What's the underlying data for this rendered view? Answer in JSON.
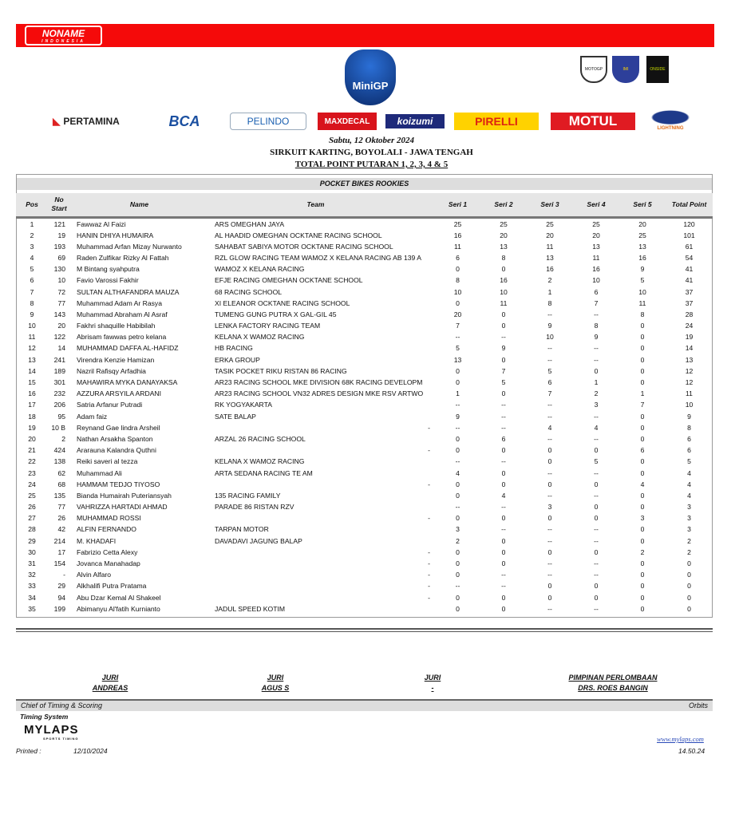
{
  "brand": {
    "logo_text": "NONAME",
    "logo_sub": "INDONESIA",
    "accent": "#f50a0a"
  },
  "event_logo": {
    "text": "MiniGP",
    "sub": "FIM"
  },
  "badges": [
    "MOTOGP",
    "IMI",
    "ONSIDE"
  ],
  "sponsors": [
    "PERTAMINA",
    "BCA",
    "PELINDO",
    "MAXDECAL",
    "koizumi",
    "PIRELLI",
    "MOTUL",
    "LIGHTNING"
  ],
  "header": {
    "date": "Sabtu, 12 Oktober 2024",
    "venue": "SIRKUIT KARTING, BOYOLALI - JAWA TENGAH",
    "title": "TOTAL POINT PUTARAN 1, 2, 3, 4 & 5"
  },
  "category": "POCKET BIKES ROOKIES",
  "columns": {
    "pos": "Pos",
    "no": "No Start",
    "name": "Name",
    "team": "Team",
    "s1": "Seri 1",
    "s2": "Seri 2",
    "s3": "Seri 3",
    "s4": "Seri 4",
    "s5": "Seri 5",
    "total": "Total Point"
  },
  "rows": [
    [
      "1",
      "121",
      "Fawwaz Al Faizi",
      "ARS OMEGHAN JAYA",
      "",
      "25",
      "25",
      "25",
      "25",
      "20",
      "120"
    ],
    [
      "2",
      "19",
      "HANIN DHIYA HUMAIRA",
      "AL HAADID OMEGHAN OCKTANE RACING SCHOOL",
      "",
      "16",
      "20",
      "20",
      "20",
      "25",
      "101"
    ],
    [
      "3",
      "193",
      "Muhammad Arfan Mizay Nurwanto",
      "SAHABAT SABIYA MOTOR OCKTANE RACING SCHOOL",
      "",
      "11",
      "13",
      "11",
      "13",
      "13",
      "61"
    ],
    [
      "4",
      "69",
      "Raden Zulfikar Rizky Al Fattah",
      "RZL GLOW RACING TEAM WAMOZ X KELANA RACING AB 139 A",
      "",
      "6",
      "8",
      "13",
      "11",
      "16",
      "54"
    ],
    [
      "5",
      "130",
      "M Bintang syahputra",
      "WAMOZ X KELANA RACING",
      "",
      "0",
      "0",
      "16",
      "16",
      "9",
      "41"
    ],
    [
      "6",
      "10",
      "Favio Varossi Fakhir",
      "EFJE RACING OMEGHAN OCKTANE SCHOOL",
      "",
      "8",
      "16",
      "2",
      "10",
      "5",
      "41"
    ],
    [
      "7",
      "72",
      "SULTAN ALTHAFANDRA MAUZA",
      "68 RACING SCHOOL",
      "",
      "10",
      "10",
      "1",
      "6",
      "10",
      "37"
    ],
    [
      "8",
      "77",
      "Muhammad Adam Ar Rasya",
      "XI ELEANOR OCKTANE RACING SCHOOL",
      "",
      "0",
      "11",
      "8",
      "7",
      "11",
      "37"
    ],
    [
      "9",
      "143",
      "Muhammad Abraham Al Asraf",
      "TUMENG GUNG PUTRA X GAL-GIL 45",
      "",
      "20",
      "0",
      "--",
      "--",
      "8",
      "28"
    ],
    [
      "10",
      "20",
      "Fakhri shaquille Habibilah",
      "LENKA FACTORY RACING TEAM",
      "",
      "7",
      "0",
      "9",
      "8",
      "0",
      "24"
    ],
    [
      "11",
      "122",
      "Abrisam fawwas petro kelana",
      "KELANA X WAMOZ RACING",
      "",
      "--",
      "--",
      "10",
      "9",
      "0",
      "19"
    ],
    [
      "12",
      "14",
      "MUHAMMAD DAFFA AL-HAFIDZ",
      "HB RACING",
      "",
      "5",
      "9",
      "--",
      "--",
      "0",
      "14"
    ],
    [
      "13",
      "241",
      "Virendra Kenzie Hamizan",
      "ERKA GROUP",
      "",
      "13",
      "0",
      "--",
      "--",
      "0",
      "13"
    ],
    [
      "14",
      "189",
      "Nazril Rafisqy Arfadhia",
      "TASIK POCKET RIKU RISTAN 86 RACING",
      "",
      "0",
      "7",
      "5",
      "0",
      "0",
      "12"
    ],
    [
      "15",
      "301",
      "MAHAWIRA MYKA DANAYAKSA",
      "AR23 RACING SCHOOL MKE DIVISION 68K RACING DEVELOPME",
      "",
      "0",
      "5",
      "6",
      "1",
      "0",
      "12"
    ],
    [
      "16",
      "232",
      "AZZURA ARSYILA ARDANI",
      "AR23 RACING SCHOOL VN32 ADRES DESIGN MKE RSV ARTWOF",
      "",
      "1",
      "0",
      "7",
      "2",
      "1",
      "11"
    ],
    [
      "17",
      "206",
      "Satria Arfanur Putradi",
      "RK YOGYAKARTA",
      "",
      "--",
      "--",
      "--",
      "3",
      "7",
      "10"
    ],
    [
      "18",
      "95",
      "Adam faiz",
      "SATE BALAP",
      "",
      "9",
      "--",
      "--",
      "--",
      "0",
      "9"
    ],
    [
      "19",
      "10 B",
      "Reynand Gae lindra Arsheil",
      "",
      "-",
      "--",
      "--",
      "4",
      "4",
      "0",
      "8"
    ],
    [
      "20",
      "2",
      "Nathan Arsakha Spanton",
      "ARZAL 26 RACING SCHOOL",
      "",
      "0",
      "6",
      "--",
      "--",
      "0",
      "6"
    ],
    [
      "21",
      "424",
      "Ararauna Kalandra Quthni",
      "",
      "-",
      "0",
      "0",
      "0",
      "0",
      "6",
      "6"
    ],
    [
      "22",
      "138",
      "Reiki saveri al tezza",
      "KELANA X WAMOZ RACING",
      "",
      "--",
      "--",
      "0",
      "5",
      "0",
      "5"
    ],
    [
      "23",
      "62",
      "Muhammad Ali",
      "ARTA SEDANA RACING TE AM",
      "",
      "4",
      "0",
      "--",
      "--",
      "0",
      "4"
    ],
    [
      "24",
      "68",
      "HAMMAM TEDJO TIYOSO",
      "",
      "-",
      "0",
      "0",
      "0",
      "0",
      "4",
      "4"
    ],
    [
      "25",
      "135",
      "Bianda Humairah Puteriansyah",
      "135 RACING FAMILY",
      "",
      "0",
      "4",
      "--",
      "--",
      "0",
      "4"
    ],
    [
      "26",
      "77",
      "VAHRIZZA HARTADI AHMAD",
      "PARADE 86 RISTAN RZV",
      "",
      "--",
      "--",
      "3",
      "0",
      "0",
      "3"
    ],
    [
      "27",
      "26",
      "MUHAMMAD ROSSI",
      "",
      "-",
      "0",
      "0",
      "0",
      "0",
      "3",
      "3"
    ],
    [
      "28",
      "42",
      "ALFIN FERNANDO",
      "TARPAN MOTOR",
      "",
      "3",
      "--",
      "--",
      "--",
      "0",
      "3"
    ],
    [
      "29",
      "214",
      "M. KHADAFI",
      "DAVADAVI JAGUNG BALAP",
      "",
      "2",
      "0",
      "--",
      "--",
      "0",
      "2"
    ],
    [
      "30",
      "17",
      "Fabrizio Cetta Alexy",
      "",
      "-",
      "0",
      "0",
      "0",
      "0",
      "2",
      "2"
    ],
    [
      "31",
      "154",
      "Jovanca Manahadap",
      "",
      "-",
      "0",
      "0",
      "--",
      "--",
      "0",
      "0"
    ],
    [
      "32",
      "-",
      "Alvin Alfaro",
      "",
      "-",
      "0",
      "--",
      "--",
      "--",
      "0",
      "0"
    ],
    [
      "33",
      "29",
      "Alkhalifi Putra Pratama",
      "",
      "-",
      "--",
      "--",
      "0",
      "0",
      "0",
      "0"
    ],
    [
      "34",
      "94",
      "Abu Dzar Kemal Al Shakeel",
      "",
      "-",
      "0",
      "0",
      "0",
      "0",
      "0",
      "0"
    ],
    [
      "35",
      "199",
      "Abimanyu Al'fatih Kurnianto",
      "JADUL SPEED KOTIM",
      "",
      "0",
      "0",
      "--",
      "--",
      "0",
      "0"
    ]
  ],
  "signatures": [
    {
      "role": "JURI",
      "name": "ANDREAS"
    },
    {
      "role": "JURI",
      "name": "AGUS S"
    },
    {
      "role": "JURI",
      "name": "-"
    },
    {
      "role": "PIMPINAN PERLOMBAAN",
      "name": "DRS. ROES BANGIN"
    }
  ],
  "footer": {
    "chief": "Chief of Timing & Scoring",
    "orbits": "Orbits",
    "timing_system": "Timing System",
    "mylaps": "MYLAPS",
    "mylaps_sub": "SPORTS TIMING",
    "url": "www.mylaps.com",
    "printed_label": "Printed :",
    "printed_date": "12/10/2024",
    "printed_time": "14.50.24"
  }
}
